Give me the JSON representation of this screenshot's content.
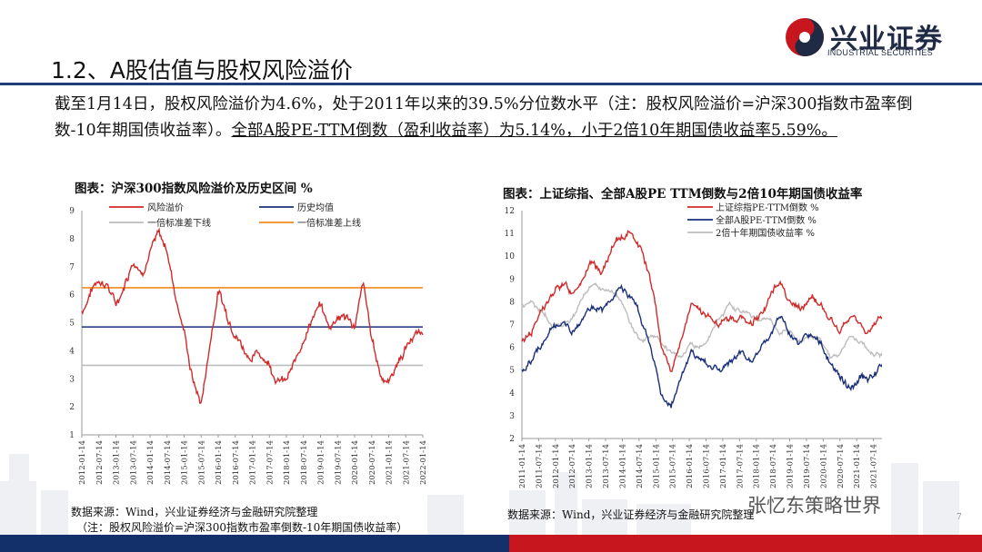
{
  "header": {
    "title": "1.2、A股估值与股权风险溢价",
    "logo_text": "兴业证券",
    "logo_subtext": "INDUSTRIAL SECURITIES"
  },
  "paragraph": {
    "part1": "截至1月14日，股权风险溢价为4.6%，处于2011年以来的39.5%分位数水平（注：股权风险溢价=沪深300指数市盈率倒数-10年期国债收益率）。",
    "part2": "全部A股PE-TTM倒数（盈利收益率）为5.14%，小于2倍10年期国债收益率5.59%。"
  },
  "chart_left_title": "图表：沪深300指数风险溢价及历史区间 %",
  "chart_right_title": "图表：上证综指、全部A股PE TTM倒数与2倍10年期国债收益率",
  "source_left": "数据来源：Wind，兴业证券经济与金融研究院整理",
  "source_left_note": "（注：股权风险溢价=沪深300指数市盈率倒数-10年期国债收益率）",
  "source_right": "数据来源：Wind，兴业证券经济与金融研究院整理",
  "watermark": "张忆东策略世界",
  "page_number": "7",
  "colors": {
    "red": "#d12a2a",
    "navy": "#1a2f7a",
    "grey": "#bdbdbd",
    "orange": "#f08c1e",
    "brand_blue": "#13306a",
    "brand_red": "#c8161e"
  },
  "chart_data": [
    {
      "type": "line",
      "title": "图表：沪深300指数风险溢价及历史区间 %",
      "ylim": [
        1,
        9
      ],
      "x_tick_labels": [
        "2012-01-14",
        "2012-07-14",
        "2013-01-14",
        "2013-07-14",
        "2014-01-14",
        "2014-07-14",
        "2015-01-14",
        "2015-07-14",
        "2016-01-14",
        "2016-07-14",
        "2017-01-14",
        "2017-07-14",
        "2018-01-14",
        "2018-07-14",
        "2019-01-14",
        "2019-07-14",
        "2020-01-14",
        "2020-07-14",
        "2021-01-14",
        "2021-07-14",
        "2022-01-14"
      ],
      "y_ticks": [
        "1",
        "2",
        "3",
        "4",
        "5",
        "6",
        "7",
        "8",
        "9"
      ],
      "legend": [
        "风险溢价",
        "历史均值",
        "一倍标准差下线",
        "一倍标准差上线"
      ],
      "series": [
        {
          "name": "风险溢价",
          "x": [
            "2012-01-14",
            "2012-04-14",
            "2012-07-14",
            "2012-10-14",
            "2013-01-14",
            "2013-04-14",
            "2013-07-14",
            "2013-10-14",
            "2014-01-14",
            "2014-04-14",
            "2014-07-14",
            "2014-10-14",
            "2015-01-14",
            "2015-04-14",
            "2015-07-14",
            "2015-10-14",
            "2016-01-14",
            "2016-04-14",
            "2016-07-14",
            "2016-10-14",
            "2017-01-14",
            "2017-04-14",
            "2017-07-14",
            "2017-10-14",
            "2018-01-14",
            "2018-04-14",
            "2018-07-14",
            "2018-10-14",
            "2019-01-14",
            "2019-04-14",
            "2019-07-14",
            "2019-10-14",
            "2020-01-14",
            "2020-04-14",
            "2020-07-14",
            "2020-10-14",
            "2021-01-14",
            "2021-04-14",
            "2021-07-14",
            "2021-10-14",
            "2022-01-14"
          ],
          "values": [
            5.4,
            6.1,
            6.6,
            6.4,
            5.6,
            6.4,
            7.3,
            6.9,
            7.6,
            8.1,
            7.6,
            6.0,
            4.7,
            3.0,
            2.1,
            4.2,
            6.2,
            5.3,
            4.8,
            4.1,
            3.8,
            3.9,
            3.6,
            3.0,
            2.9,
            3.5,
            4.5,
            5.2,
            5.6,
            4.8,
            5.3,
            5.2,
            4.9,
            6.3,
            4.4,
            3.2,
            2.9,
            3.6,
            4.1,
            4.6,
            4.6
          ]
        },
        {
          "name": "历史均值",
          "value": 4.85
        },
        {
          "name": "一倍标准差下线",
          "value": 3.48
        },
        {
          "name": "一倍标准差上线",
          "value": 6.25
        }
      ]
    },
    {
      "type": "line",
      "title": "图表：上证综指、全部A股PE TTM倒数与2倍10年期国债收益率",
      "ylim": [
        2,
        12
      ],
      "x_tick_labels": [
        "2011-01-14",
        "2011-07-14",
        "2012-01-14",
        "2012-07-14",
        "2013-01-14",
        "2013-07-14",
        "2014-01-14",
        "2014-07-14",
        "2015-01-14",
        "2015-07-14",
        "2016-01-14",
        "2016-07-14",
        "2017-01-14",
        "2017-07-14",
        "2018-01-14",
        "2018-07-14",
        "2019-01-14",
        "2019-07-14",
        "2020-01-14",
        "2020-07-14",
        "2021-01-14",
        "2021-07-14",
        "2022-01-14"
      ],
      "y_ticks": [
        "2",
        "3",
        "4",
        "5",
        "6",
        "7",
        "8",
        "9",
        "10",
        "11",
        "12"
      ],
      "legend": [
        "上证综指PE-TTM倒数 %",
        "全部A股PE-TTM倒数 %",
        "2倍十年期国债收益率 %"
      ],
      "series": [
        {
          "name": "上证综指PE-TTM倒数 %",
          "values": [
            6.2,
            6.8,
            7.6,
            8.2,
            8.8,
            8.4,
            9.1,
            9.6,
            9.3,
            10.2,
            10.8,
            11.1,
            10.4,
            8.8,
            6.2,
            5.0,
            6.3,
            7.8,
            7.5,
            7.2,
            7.0,
            7.2,
            7.3,
            7.0,
            7.5,
            8.3,
            8.9,
            8.0,
            7.6,
            8.2,
            7.9,
            7.2,
            6.6,
            7.3,
            7.0,
            6.6,
            7.3,
            7.4
          ]
        },
        {
          "name": "全部A股PE-TTM倒数 %",
          "values": [
            5.0,
            5.4,
            6.2,
            6.6,
            7.0,
            6.7,
            7.3,
            7.7,
            7.5,
            8.1,
            8.6,
            8.3,
            7.2,
            5.8,
            3.8,
            3.4,
            4.8,
            5.7,
            5.5,
            5.2,
            5.0,
            5.4,
            5.6,
            5.3,
            5.9,
            6.6,
            7.5,
            6.5,
            6.2,
            6.5,
            6.0,
            5.3,
            4.6,
            4.2,
            4.7,
            4.6,
            5.0,
            5.1
          ]
        },
        {
          "name": "2倍十年期国债收益率 %",
          "values": [
            7.8,
            8.0,
            7.5,
            7.0,
            6.9,
            7.2,
            8.1,
            8.8,
            8.6,
            8.4,
            8.0,
            6.9,
            6.3,
            6.6,
            6.3,
            5.8,
            5.7,
            6.3,
            6.0,
            6.6,
            7.4,
            7.9,
            7.6,
            7.4,
            7.2,
            7.3,
            6.7,
            6.6,
            6.3,
            6.5,
            6.4,
            5.5,
            5.7,
            6.4,
            6.2,
            5.9,
            5.7,
            5.6
          ]
        }
      ]
    }
  ]
}
